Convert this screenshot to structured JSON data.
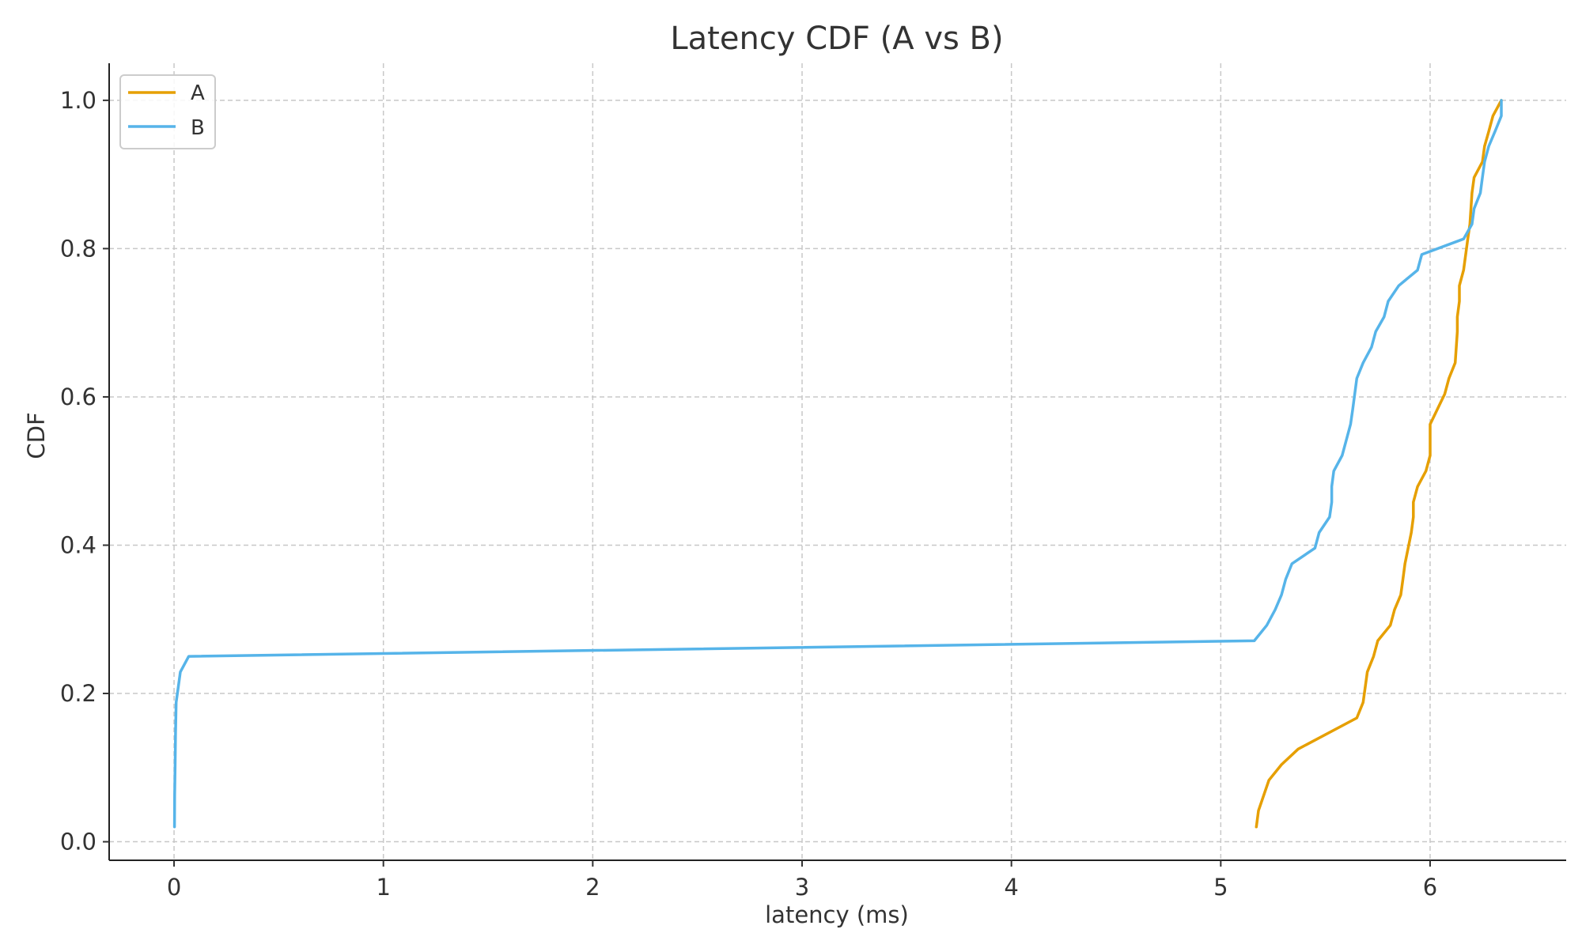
{
  "chart_data": {
    "type": "line",
    "title": "Latency CDF (A vs B)",
    "xlabel": "latency (ms)",
    "ylabel": "CDF",
    "xlim": [
      -0.31,
      6.65
    ],
    "ylim": [
      -0.025,
      1.05
    ],
    "x_ticks": [
      0,
      1,
      2,
      3,
      4,
      5,
      6
    ],
    "x_tick_labels": [
      "0",
      "1",
      "2",
      "3",
      "4",
      "5",
      "6"
    ],
    "y_ticks": [
      0.0,
      0.2,
      0.4,
      0.6,
      0.8,
      1.0
    ],
    "y_tick_labels": [
      "0.0",
      "0.2",
      "0.4",
      "0.6",
      "0.8",
      "1.0"
    ],
    "grid": true,
    "legend_position": "top-left",
    "series": [
      {
        "name": "A",
        "color": "#E69F00",
        "points": [
          [
            5.17,
            0.02
          ],
          [
            5.18,
            0.042
          ],
          [
            5.23,
            0.083
          ],
          [
            5.29,
            0.104
          ],
          [
            5.37,
            0.125
          ],
          [
            5.65,
            0.167
          ],
          [
            5.68,
            0.188
          ],
          [
            5.7,
            0.229
          ],
          [
            5.73,
            0.25
          ],
          [
            5.75,
            0.271
          ],
          [
            5.81,
            0.292
          ],
          [
            5.83,
            0.313
          ],
          [
            5.86,
            0.333
          ],
          [
            5.87,
            0.354
          ],
          [
            5.88,
            0.375
          ],
          [
            5.91,
            0.417
          ],
          [
            5.92,
            0.438
          ],
          [
            5.92,
            0.458
          ],
          [
            5.94,
            0.479
          ],
          [
            5.98,
            0.5
          ],
          [
            6.0,
            0.521
          ],
          [
            6.0,
            0.563
          ],
          [
            6.07,
            0.604
          ],
          [
            6.09,
            0.625
          ],
          [
            6.12,
            0.646
          ],
          [
            6.13,
            0.688
          ],
          [
            6.13,
            0.708
          ],
          [
            6.14,
            0.729
          ],
          [
            6.14,
            0.75
          ],
          [
            6.16,
            0.771
          ],
          [
            6.18,
            0.813
          ],
          [
            6.19,
            0.833
          ],
          [
            6.2,
            0.875
          ],
          [
            6.21,
            0.896
          ],
          [
            6.25,
            0.917
          ],
          [
            6.26,
            0.938
          ],
          [
            6.28,
            0.958
          ],
          [
            6.3,
            0.979
          ],
          [
            6.34,
            1.0
          ]
        ]
      },
      {
        "name": "B",
        "color": "#56B4E9",
        "points": [
          [
            0.002,
            0.02
          ],
          [
            0.003,
            0.063
          ],
          [
            0.005,
            0.104
          ],
          [
            0.007,
            0.146
          ],
          [
            0.01,
            0.188
          ],
          [
            0.02,
            0.208
          ],
          [
            0.03,
            0.229
          ],
          [
            0.07,
            0.25
          ],
          [
            5.16,
            0.271
          ],
          [
            5.22,
            0.292
          ],
          [
            5.26,
            0.313
          ],
          [
            5.29,
            0.333
          ],
          [
            5.31,
            0.354
          ],
          [
            5.34,
            0.375
          ],
          [
            5.45,
            0.396
          ],
          [
            5.47,
            0.417
          ],
          [
            5.52,
            0.438
          ],
          [
            5.53,
            0.458
          ],
          [
            5.53,
            0.479
          ],
          [
            5.54,
            0.5
          ],
          [
            5.58,
            0.521
          ],
          [
            5.6,
            0.542
          ],
          [
            5.62,
            0.563
          ],
          [
            5.63,
            0.583
          ],
          [
            5.64,
            0.604
          ],
          [
            5.65,
            0.625
          ],
          [
            5.68,
            0.646
          ],
          [
            5.72,
            0.667
          ],
          [
            5.74,
            0.688
          ],
          [
            5.78,
            0.708
          ],
          [
            5.8,
            0.729
          ],
          [
            5.85,
            0.75
          ],
          [
            5.94,
            0.771
          ],
          [
            5.96,
            0.792
          ],
          [
            6.16,
            0.813
          ],
          [
            6.2,
            0.833
          ],
          [
            6.21,
            0.854
          ],
          [
            6.24,
            0.875
          ],
          [
            6.25,
            0.896
          ],
          [
            6.26,
            0.917
          ],
          [
            6.28,
            0.938
          ],
          [
            6.31,
            0.958
          ],
          [
            6.34,
            0.979
          ],
          [
            6.34,
            1.0
          ]
        ]
      }
    ]
  }
}
